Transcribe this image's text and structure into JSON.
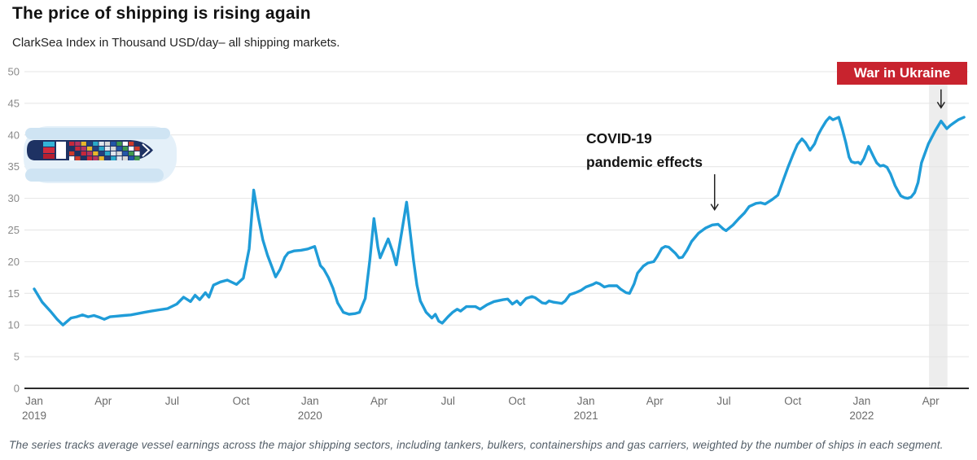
{
  "header": {
    "title": "The price of shipping is rising again",
    "subtitle": "ClarkSea Index in Thousand USD/day– all shipping markets."
  },
  "annotations": {
    "covid": {
      "line1": "COVID-19",
      "line2": "pandemic effects",
      "arrow": {
        "month": 29.6,
        "value_from": 33.8,
        "value_to": 28.2
      }
    },
    "war": {
      "label": "War in Ukraine",
      "label_bg_color": "#c8232e",
      "arrow": {
        "month": 39.45,
        "value_from": 47.2,
        "value_to": 44.3
      },
      "band_month_start": 38.93,
      "band_month_end": 39.73,
      "band_color": "#ededed"
    }
  },
  "footnote": "The series tracks average vessel earnings across the major shipping sectors, including tankers, bulkers, containerships and gas carriers, weighted by the number of ships in each segment.",
  "chart_data": {
    "type": "line",
    "title": "The price of shipping is rising again",
    "series_name": "ClarkSea Index",
    "unit": "Thousand USD/day",
    "x_unit": "months since Jan 2019",
    "line_color": "#1f9cd8",
    "grid_color": "#e4e4e4",
    "zero_line_color": "#2b2b2b",
    "y_tick_color": "#8a8a8a",
    "x_tick_color": "#6b6b6b",
    "grid": true,
    "legend": "none",
    "y_axis": {
      "min": 0,
      "max": 50,
      "step": 5,
      "ticks": [
        0,
        5,
        10,
        15,
        20,
        25,
        30,
        35,
        40,
        45,
        50
      ]
    },
    "x_axis": {
      "ticks": [
        {
          "m": 0,
          "label": "Jan",
          "year": "2019"
        },
        {
          "m": 3,
          "label": "Apr"
        },
        {
          "m": 6,
          "label": "Jul"
        },
        {
          "m": 9,
          "label": "Oct"
        },
        {
          "m": 12,
          "label": "Jan",
          "year": "2020"
        },
        {
          "m": 15,
          "label": "Apr"
        },
        {
          "m": 18,
          "label": "Jul"
        },
        {
          "m": 21,
          "label": "Oct"
        },
        {
          "m": 24,
          "label": "Jan",
          "year": "2021"
        },
        {
          "m": 27,
          "label": "Apr"
        },
        {
          "m": 30,
          "label": "Jul"
        },
        {
          "m": 33,
          "label": "Oct"
        },
        {
          "m": 36,
          "label": "Jan",
          "year": "2022"
        },
        {
          "m": 39,
          "label": "Apr"
        }
      ]
    },
    "points": [
      [
        0,
        15.7
      ],
      [
        0.35,
        13.6
      ],
      [
        0.7,
        12.2
      ],
      [
        1.0,
        10.9
      ],
      [
        1.25,
        10.0
      ],
      [
        1.6,
        11.1
      ],
      [
        1.85,
        11.3
      ],
      [
        2.1,
        11.6
      ],
      [
        2.35,
        11.3
      ],
      [
        2.6,
        11.5
      ],
      [
        2.85,
        11.2
      ],
      [
        3.05,
        10.9
      ],
      [
        3.3,
        11.3
      ],
      [
        3.6,
        11.4
      ],
      [
        3.9,
        11.5
      ],
      [
        4.2,
        11.6
      ],
      [
        4.5,
        11.8
      ],
      [
        4.8,
        12.0
      ],
      [
        5.1,
        12.2
      ],
      [
        5.45,
        12.4
      ],
      [
        5.8,
        12.6
      ],
      [
        6.2,
        13.3
      ],
      [
        6.5,
        14.4
      ],
      [
        6.8,
        13.7
      ],
      [
        7.0,
        14.7
      ],
      [
        7.2,
        14.0
      ],
      [
        7.45,
        15.1
      ],
      [
        7.6,
        14.4
      ],
      [
        7.8,
        16.3
      ],
      [
        8.1,
        16.8
      ],
      [
        8.4,
        17.1
      ],
      [
        8.8,
        16.4
      ],
      [
        9.1,
        17.4
      ],
      [
        9.35,
        22.0
      ],
      [
        9.55,
        31.3
      ],
      [
        9.75,
        27.0
      ],
      [
        9.95,
        23.4
      ],
      [
        10.15,
        21.0
      ],
      [
        10.35,
        19.1
      ],
      [
        10.5,
        17.6
      ],
      [
        10.7,
        18.8
      ],
      [
        10.9,
        20.7
      ],
      [
        11.05,
        21.4
      ],
      [
        11.3,
        21.7
      ],
      [
        11.6,
        21.8
      ],
      [
        11.9,
        22.0
      ],
      [
        12.2,
        22.4
      ],
      [
        12.45,
        19.4
      ],
      [
        12.6,
        18.8
      ],
      [
        12.8,
        17.5
      ],
      [
        13.0,
        15.8
      ],
      [
        13.2,
        13.5
      ],
      [
        13.45,
        12.0
      ],
      [
        13.7,
        11.7
      ],
      [
        13.95,
        11.8
      ],
      [
        14.15,
        12.0
      ],
      [
        14.4,
        14.2
      ],
      [
        14.6,
        20.2
      ],
      [
        14.78,
        26.8
      ],
      [
        14.95,
        22.3
      ],
      [
        15.05,
        20.6
      ],
      [
        15.4,
        23.6
      ],
      [
        15.6,
        21.5
      ],
      [
        15.75,
        19.5
      ],
      [
        16.0,
        24.9
      ],
      [
        16.2,
        29.4
      ],
      [
        16.35,
        24.9
      ],
      [
        16.5,
        20.2
      ],
      [
        16.65,
        16.3
      ],
      [
        16.8,
        13.8
      ],
      [
        17.05,
        12.0
      ],
      [
        17.3,
        11.1
      ],
      [
        17.45,
        11.7
      ],
      [
        17.6,
        10.6
      ],
      [
        17.75,
        10.3
      ],
      [
        18.0,
        11.3
      ],
      [
        18.2,
        12.0
      ],
      [
        18.4,
        12.5
      ],
      [
        18.55,
        12.2
      ],
      [
        18.8,
        12.9
      ],
      [
        19.2,
        12.9
      ],
      [
        19.4,
        12.5
      ],
      [
        19.7,
        13.2
      ],
      [
        20.0,
        13.7
      ],
      [
        20.4,
        14.0
      ],
      [
        20.6,
        14.1
      ],
      [
        20.8,
        13.3
      ],
      [
        21.0,
        13.8
      ],
      [
        21.15,
        13.2
      ],
      [
        21.4,
        14.2
      ],
      [
        21.65,
        14.5
      ],
      [
        21.8,
        14.3
      ],
      [
        22.1,
        13.5
      ],
      [
        22.25,
        13.4
      ],
      [
        22.4,
        13.8
      ],
      [
        22.6,
        13.6
      ],
      [
        22.8,
        13.5
      ],
      [
        22.95,
        13.4
      ],
      [
        23.1,
        13.8
      ],
      [
        23.3,
        14.8
      ],
      [
        23.55,
        15.1
      ],
      [
        23.8,
        15.5
      ],
      [
        24.0,
        16.0
      ],
      [
        24.3,
        16.4
      ],
      [
        24.45,
        16.7
      ],
      [
        24.6,
        16.5
      ],
      [
        24.8,
        16.0
      ],
      [
        25.0,
        16.2
      ],
      [
        25.35,
        16.2
      ],
      [
        25.5,
        15.7
      ],
      [
        25.75,
        15.1
      ],
      [
        25.9,
        15.0
      ],
      [
        26.1,
        16.5
      ],
      [
        26.25,
        18.2
      ],
      [
        26.5,
        19.3
      ],
      [
        26.7,
        19.8
      ],
      [
        26.95,
        20.0
      ],
      [
        27.1,
        20.8
      ],
      [
        27.3,
        22.1
      ],
      [
        27.45,
        22.4
      ],
      [
        27.6,
        22.3
      ],
      [
        27.75,
        21.8
      ],
      [
        27.9,
        21.3
      ],
      [
        28.05,
        20.6
      ],
      [
        28.2,
        20.7
      ],
      [
        28.4,
        21.8
      ],
      [
        28.6,
        23.2
      ],
      [
        28.9,
        24.5
      ],
      [
        29.2,
        25.3
      ],
      [
        29.5,
        25.8
      ],
      [
        29.75,
        25.9
      ],
      [
        30.0,
        25.1
      ],
      [
        30.1,
        24.9
      ],
      [
        30.4,
        25.8
      ],
      [
        30.65,
        26.8
      ],
      [
        30.9,
        27.7
      ],
      [
        31.1,
        28.7
      ],
      [
        31.4,
        29.2
      ],
      [
        31.6,
        29.3
      ],
      [
        31.8,
        29.1
      ],
      [
        32.1,
        29.8
      ],
      [
        32.35,
        30.5
      ],
      [
        32.6,
        33.0
      ],
      [
        32.8,
        35.0
      ],
      [
        33.0,
        36.8
      ],
      [
        33.2,
        38.5
      ],
      [
        33.4,
        39.4
      ],
      [
        33.55,
        38.8
      ],
      [
        33.75,
        37.6
      ],
      [
        33.95,
        38.6
      ],
      [
        34.1,
        40.0
      ],
      [
        34.25,
        41.0
      ],
      [
        34.45,
        42.2
      ],
      [
        34.6,
        42.8
      ],
      [
        34.75,
        42.4
      ],
      [
        35.0,
        42.8
      ],
      [
        35.15,
        41.0
      ],
      [
        35.3,
        38.9
      ],
      [
        35.45,
        36.5
      ],
      [
        35.55,
        35.8
      ],
      [
        35.7,
        35.6
      ],
      [
        35.85,
        35.7
      ],
      [
        35.95,
        35.4
      ],
      [
        36.1,
        36.3
      ],
      [
        36.3,
        38.2
      ],
      [
        36.5,
        36.7
      ],
      [
        36.65,
        35.6
      ],
      [
        36.8,
        35.1
      ],
      [
        36.95,
        35.2
      ],
      [
        37.1,
        34.9
      ],
      [
        37.25,
        33.9
      ],
      [
        37.45,
        32.0
      ],
      [
        37.6,
        31.0
      ],
      [
        37.7,
        30.4
      ],
      [
        37.85,
        30.1
      ],
      [
        38.0,
        30.0
      ],
      [
        38.15,
        30.2
      ],
      [
        38.3,
        30.9
      ],
      [
        38.45,
        32.5
      ],
      [
        38.6,
        35.6
      ],
      [
        38.9,
        38.6
      ],
      [
        39.2,
        40.7
      ],
      [
        39.45,
        42.2
      ],
      [
        39.7,
        41.0
      ],
      [
        39.85,
        41.5
      ],
      [
        40.0,
        41.9
      ],
      [
        40.2,
        42.4
      ],
      [
        40.45,
        42.8
      ]
    ]
  },
  "illustration": {
    "name": "container-ship",
    "wake_color_base": "#e4f0f9",
    "wake_color_streak": "#cfe4f3",
    "hull_color": "#1e3263",
    "bridge_color": "#ffffff",
    "container_colors": [
      "#c7283a",
      "#2356a7",
      "#e8b62a",
      "#ffffff",
      "#2aa9c9",
      "#1e3263",
      "#d8d8d8",
      "#b8345f",
      "#3f9a4d",
      "#24407e",
      "#cf3b2a",
      "#e0e6ee"
    ]
  }
}
